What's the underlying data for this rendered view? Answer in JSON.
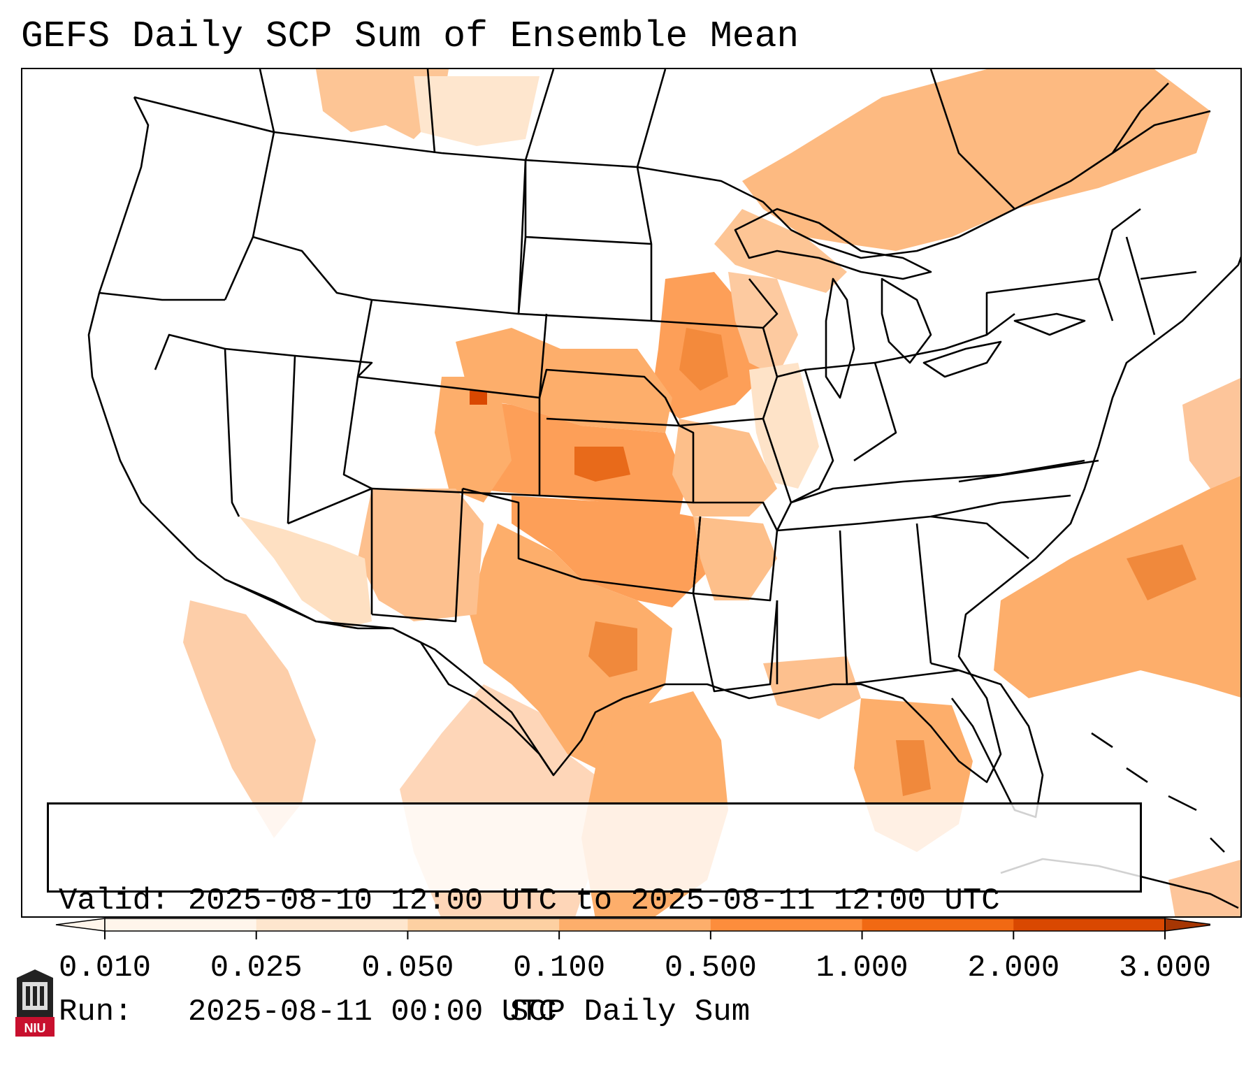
{
  "title": "GEFS Daily SCP Sum of Ensemble Mean",
  "info": {
    "valid_label": "Valid:",
    "valid_value": "2025-08-10 12:00 UTC to 2025-08-11 12:00 UTC",
    "run_label": "Run:",
    "run_value": "2025-08-11 00:00 UTC"
  },
  "colorbar": {
    "label": "SCP Daily Sum",
    "ticks": [
      "0.010",
      "0.025",
      "0.050",
      "0.100",
      "0.500",
      "1.000",
      "2.000",
      "3.000"
    ],
    "colors": [
      "#fff5eb",
      "#fee6ce",
      "#fdd0a2",
      "#fdae6b",
      "#fd8d3c",
      "#f16913",
      "#d94801",
      "#a63603"
    ],
    "extend": "both"
  },
  "logo": {
    "text": "NIU"
  },
  "map": {
    "region": "Continental United States",
    "field": "SCP daily sum",
    "land_color": "#ffffff",
    "border_color": "#000000"
  }
}
